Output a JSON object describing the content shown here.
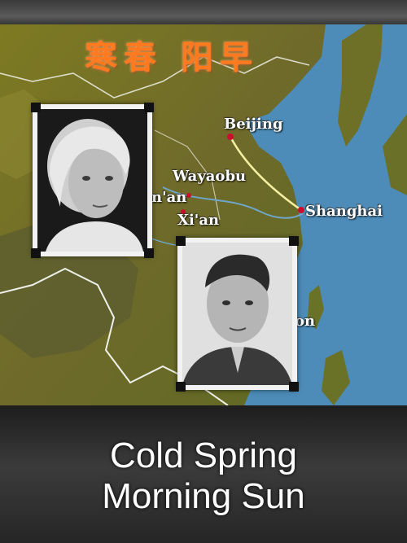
{
  "poster": {
    "chinese_title": "寒春 阳早",
    "title_line1": "Cold Spring",
    "title_line2": "Morning Sun"
  },
  "map": {
    "cities": {
      "beijing": "Beijing",
      "wayaobu": "Wayaobu",
      "yanan_partial": "n'an",
      "xian": "Xi'an",
      "shanghai": "Shanghai",
      "partial_label": "on"
    }
  },
  "colors": {
    "chinese_title": "#ff7a1e",
    "land": "#7a7a2a",
    "sea": "#4d8cb8",
    "route": "#f4f0a0"
  }
}
